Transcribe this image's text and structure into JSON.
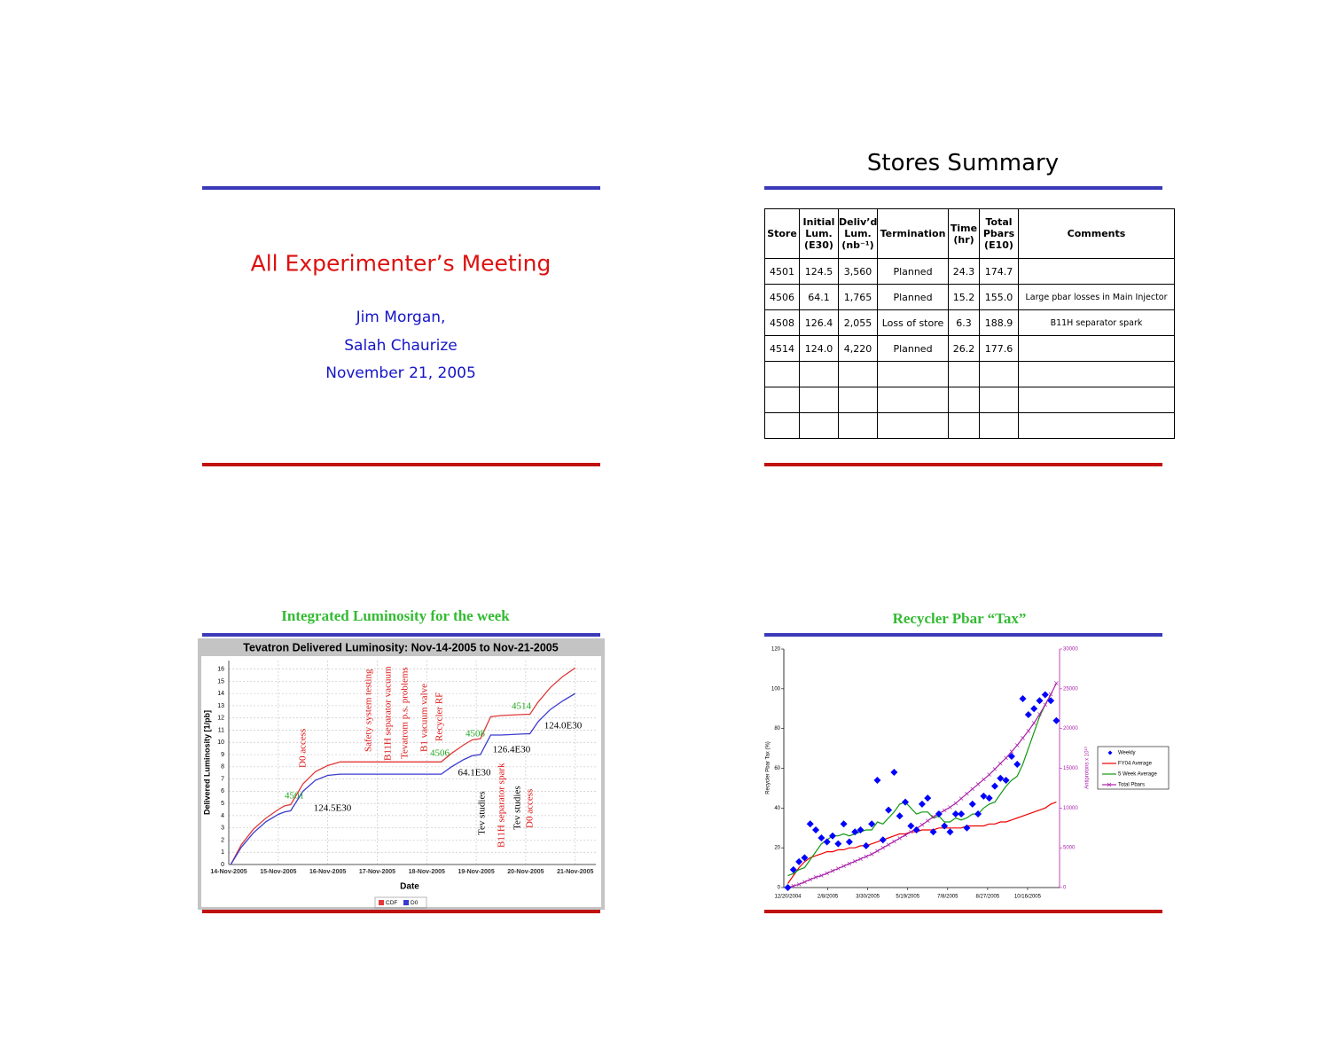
{
  "title_slide": {
    "title": "All Experimenter’s Meeting",
    "authors": [
      "Jim Morgan,",
      "Salah Chaurize"
    ],
    "date": "November 21, 2005"
  },
  "stores_slide": {
    "title": "Stores Summary",
    "table": {
      "header": [
        "Store",
        "Initial\nLum.\n(E30)",
        "Deliv’d\nLum.\n(nb⁻¹)",
        "Termination",
        "Time\n(hr)",
        "Total\nPbars\n(E10)",
        "Comments"
      ],
      "rows": [
        [
          "4501",
          "124.5",
          "3,560",
          "Planned",
          "24.3",
          "174.7",
          null
        ],
        [
          "4506",
          "64.1",
          "1,765",
          "Planned",
          "15.2",
          "155.0",
          "Large pbar losses in Main Injector"
        ],
        [
          "4508",
          "126.4",
          "2,055",
          "Loss of store",
          "6.3",
          "188.9",
          "B11H separator spark"
        ],
        [
          "4514",
          "124.0",
          "4,220",
          "Planned",
          "26.2",
          "177.6",
          null
        ]
      ]
    }
  },
  "luminosity_slide": {
    "title": "Integrated Luminosity for the week"
  },
  "recycler_slide": {
    "title": "Recycler Pbar “Tax”"
  },
  "chart_data": [
    {
      "type": "line",
      "title": "Tevatron Delivered Luminosity:  Nov-14-2005 to Nov-21-2005",
      "xlabel": "Date",
      "ylabel": "Delivered Luminosity [1/pb]",
      "grid": true,
      "legend": "bottom",
      "x": [
        "2005-11-14T01:00",
        "2005-11-14T06:00",
        "2005-11-14T12:00",
        "2005-11-14T18:00",
        "2005-11-15T00:00",
        "2005-11-15T03:00",
        "2005-11-15T06:00",
        "2005-11-15T12:00",
        "2005-11-15T18:00",
        "2005-11-16T00:00",
        "2005-11-16T06:00",
        "2005-11-16T12:00",
        "2005-11-17T00:00",
        "2005-11-17T12:00",
        "2005-11-18T00:00",
        "2005-11-18T07:00",
        "2005-11-18T12:00",
        "2005-11-18T18:00",
        "2005-11-18T22:00",
        "2005-11-19T02:00",
        "2005-11-19T07:00",
        "2005-11-19T12:00",
        "2005-11-20T00:00",
        "2005-11-20T02:00",
        "2005-11-20T06:00",
        "2005-11-20T12:00",
        "2005-11-20T18:00",
        "2005-11-21T00:00"
      ],
      "series": [
        {
          "name": "CDF",
          "color": "#e03a3a",
          "values": [
            0,
            1.6,
            2.9,
            3.8,
            4.5,
            4.8,
            4.9,
            6.6,
            7.6,
            8.1,
            8.4,
            8.4,
            8.4,
            8.4,
            8.4,
            8.4,
            9.1,
            9.8,
            10.2,
            10.3,
            12.1,
            12.2,
            12.3,
            12.3,
            13.3,
            14.5,
            15.4,
            16.1
          ]
        },
        {
          "name": "D0",
          "color": "#3a3ad0",
          "values": [
            0,
            1.4,
            2.6,
            3.5,
            4.1,
            4.3,
            4.4,
            6.0,
            6.9,
            7.3,
            7.4,
            7.4,
            7.4,
            7.4,
            7.4,
            7.4,
            8.0,
            8.6,
            8.9,
            9.0,
            10.6,
            10.6,
            10.7,
            10.7,
            11.7,
            12.7,
            13.4,
            14.0
          ]
        }
      ],
      "xlim": [
        "2005-11-14T00:00",
        "2005-11-21T10:00"
      ],
      "xticks": [
        {
          "value": "2005-11-14T00:00",
          "label": "14-Nov-2005"
        },
        {
          "value": "2005-11-15T00:00",
          "label": "15-Nov-2005"
        },
        {
          "value": "2005-11-16T00:00",
          "label": "16-Nov-2005"
        },
        {
          "value": "2005-11-17T00:00",
          "label": "17-Nov-2005"
        },
        {
          "value": "2005-11-18T00:00",
          "label": "18-Nov-2005"
        },
        {
          "value": "2005-11-19T00:00",
          "label": "19-Nov-2005"
        },
        {
          "value": "2005-11-20T00:00",
          "label": "20-Nov-2005"
        },
        {
          "value": "2005-11-21T00:00",
          "label": "21-Nov-2005"
        }
      ],
      "ylim": [
        0,
        16.7
      ],
      "yticks": [
        0,
        1,
        2,
        3,
        4,
        5,
        6,
        7,
        8,
        9,
        10,
        11,
        12,
        13,
        14,
        15,
        16
      ],
      "annotations": [
        {
          "text": "D0 access",
          "color": "#dd1111"
        },
        {
          "text": "Safety system testing",
          "color": "#dd1111"
        },
        {
          "text": "B11H separator vacuum",
          "color": "#dd1111"
        },
        {
          "text": "Tevatrom p.s. problems",
          "color": "#dd1111"
        },
        {
          "text": "B1 vacuum valve",
          "color": "#dd1111"
        },
        {
          "text": "Recycler RF",
          "color": "#dd1111"
        },
        {
          "text": "4501",
          "color": "#22aa22"
        },
        {
          "text": "124.5E30",
          "color": "#000000"
        },
        {
          "text": "4506",
          "color": "#22aa22"
        },
        {
          "text": "64.1E30",
          "color": "#000000"
        },
        {
          "text": "4508",
          "color": "#22aa22"
        },
        {
          "text": "126.4E30",
          "color": "#000000"
        },
        {
          "text": "4514",
          "color": "#22aa22"
        },
        {
          "text": "124.0E30",
          "color": "#000000"
        },
        {
          "text": "Tev studies",
          "color": "#000000"
        },
        {
          "text": "B11H separator spark",
          "color": "#dd1111"
        },
        {
          "text": "Tev studies",
          "color": "#000000"
        },
        {
          "text": "D0 access",
          "color": "#dd1111"
        }
      ]
    },
    {
      "type": "line",
      "ylabel": "Recycler Pbar Tax (%)",
      "y2label": "Antiprotons x 10¹⁰",
      "grid": false,
      "legend": "right",
      "x": [
        "2004-12-20",
        "2004-12-27",
        "2005-01-03",
        "2005-01-10",
        "2005-01-17",
        "2005-01-24",
        "2005-01-31",
        "2005-02-07",
        "2005-02-14",
        "2005-02-21",
        "2005-02-28",
        "2005-03-07",
        "2005-03-14",
        "2005-03-21",
        "2005-03-28",
        "2005-04-04",
        "2005-04-11",
        "2005-04-18",
        "2005-04-25",
        "2005-05-02",
        "2005-05-09",
        "2005-05-16",
        "2005-05-23",
        "2005-05-30",
        "2005-06-06",
        "2005-06-13",
        "2005-06-20",
        "2005-06-27",
        "2005-07-04",
        "2005-07-11",
        "2005-07-18",
        "2005-07-25",
        "2005-08-01",
        "2005-08-08",
        "2005-08-15",
        "2005-08-22",
        "2005-08-29",
        "2005-09-05",
        "2005-09-12",
        "2005-09-19",
        "2005-09-26",
        "2005-10-03",
        "2005-10-10",
        "2005-10-17",
        "2005-10-24",
        "2005-10-31",
        "2005-11-07",
        "2005-11-14",
        "2005-11-21"
      ],
      "series": [
        {
          "name": "Weekly",
          "type": "scatter",
          "marker": "diamond",
          "color": "#0000ff",
          "values": [
            0,
            9,
            13,
            15,
            32,
            29,
            25,
            23,
            26,
            22,
            32,
            23,
            28,
            29,
            21,
            32,
            54,
            24,
            39,
            58,
            36,
            43,
            31,
            29,
            42,
            45,
            28,
            37,
            31,
            28,
            37,
            37,
            30,
            42,
            37,
            46,
            45,
            51,
            55,
            54,
            66,
            62,
            95,
            87,
            90,
            94,
            97,
            94,
            84
          ]
        },
        {
          "name": "FY04 Average",
          "color": "#ee0000",
          "values": [
            2,
            6,
            10,
            13,
            15,
            16,
            17,
            18,
            18,
            19,
            19,
            20,
            20,
            21,
            21,
            22,
            23,
            24,
            25,
            26,
            27,
            27,
            28,
            28,
            29,
            29,
            29,
            30,
            30,
            30,
            30,
            30,
            31,
            31,
            31,
            31,
            32,
            32,
            33,
            33,
            34,
            35,
            36,
            37,
            38,
            39,
            40,
            42,
            43
          ]
        },
        {
          "name": "5 Week Average",
          "color": "#119911",
          "values": [
            6,
            7,
            9,
            10,
            14,
            18,
            22,
            24,
            26,
            26,
            27,
            26,
            27,
            28,
            29,
            29,
            33,
            32,
            35,
            38,
            42,
            43,
            40,
            37,
            38,
            38,
            35,
            36,
            33,
            33,
            35,
            34,
            35,
            37,
            37,
            40,
            42,
            43,
            47,
            51,
            54,
            56,
            62,
            70,
            78,
            86,
            92,
            97,
            null
          ]
        },
        {
          "name": "Total Pbars",
          "axis": "y2",
          "marker": "x",
          "color": "#aa22aa",
          "values": [
            0,
            200,
            400,
            700,
            1000,
            1300,
            1500,
            1800,
            2100,
            2400,
            2700,
            3000,
            3300,
            3600,
            3900,
            4200,
            4600,
            5000,
            5400,
            5800,
            6200,
            6600,
            7000,
            7400,
            7900,
            8400,
            8900,
            9300,
            9700,
            10100,
            10600,
            11200,
            11800,
            12400,
            13000,
            13600,
            14200,
            14900,
            15600,
            16300,
            17100,
            17900,
            18800,
            19700,
            20700,
            21800,
            23000,
            24300,
            25700
          ]
        }
      ],
      "xlim": [
        "2004-12-15",
        "2005-11-25"
      ],
      "xticks": [
        {
          "value": "2004-12-20",
          "label": "12/20/2004"
        },
        {
          "value": "2005-02-08",
          "label": "2/8/2005"
        },
        {
          "value": "2005-03-30",
          "label": "3/30/2005"
        },
        {
          "value": "2005-05-19",
          "label": "5/19/2005"
        },
        {
          "value": "2005-07-08",
          "label": "7/8/2005"
        },
        {
          "value": "2005-08-27",
          "label": "8/27/2005"
        },
        {
          "value": "2005-10-16",
          "label": "10/16/2005"
        }
      ],
      "ylim": [
        0,
        120
      ],
      "yticks": [
        0,
        20,
        40,
        60,
        80,
        100,
        120
      ],
      "y2lim": [
        0,
        30000
      ],
      "y2ticks": [
        0,
        5000,
        10000,
        15000,
        20000,
        25000,
        30000
      ]
    }
  ]
}
